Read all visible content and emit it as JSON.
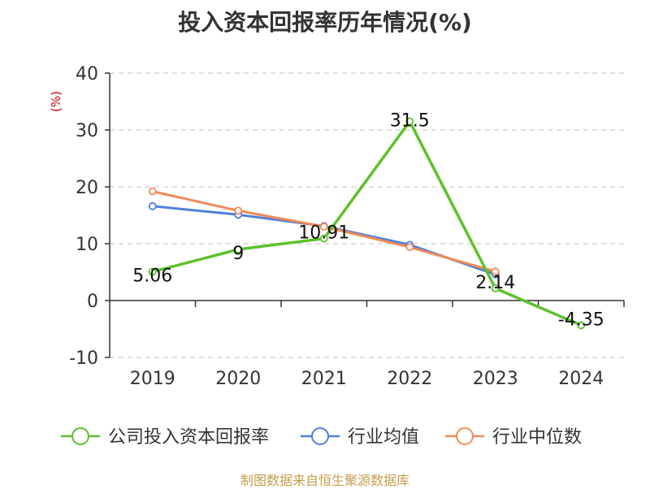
{
  "chart_data": {
    "type": "line",
    "title": "投入资本回报率历年情况(%)",
    "ylabel": "(%)",
    "xlabel": "",
    "categories": [
      "2019",
      "2020",
      "2021",
      "2022",
      "2023",
      "2024"
    ],
    "ylim": [
      -10,
      40
    ],
    "yticks": [
      40,
      30,
      20,
      10,
      0,
      -10
    ],
    "grid": true,
    "legend_position": "bottom",
    "series": [
      {
        "name": "公司投入资本回报率",
        "color": "#5cc22a",
        "values": [
          5.06,
          9,
          10.91,
          31.5,
          2.14,
          -4.35
        ],
        "labels": [
          "5.06",
          "9",
          "10.91",
          "31.5",
          "2.14",
          "-4.35"
        ]
      },
      {
        "name": "行业均值",
        "color": "#4f7fdb",
        "values": [
          16.6,
          15.1,
          13.1,
          9.8,
          4.6,
          null
        ],
        "labels": []
      },
      {
        "name": "行业中位数",
        "color": "#f08a58",
        "values": [
          19.2,
          15.8,
          13.0,
          9.4,
          5.1,
          null
        ],
        "labels": []
      }
    ]
  },
  "footer": {
    "source": "制图数据来自恒生聚源数据库"
  },
  "colors": {
    "axis_label_red": "#cc0000",
    "grid": "#cccccc",
    "axis": "#333333",
    "text": "#333333",
    "footer": "#c69c4a"
  }
}
